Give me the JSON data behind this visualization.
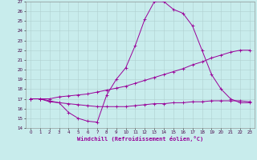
{
  "xlabel": "Windchill (Refroidissement éolien,°C)",
  "background_color": "#c8ecec",
  "grid_color": "#b0d0d0",
  "line_color": "#990099",
  "xlim": [
    -0.5,
    23.5
  ],
  "ylim": [
    14,
    27
  ],
  "xticks": [
    0,
    1,
    2,
    3,
    4,
    5,
    6,
    7,
    8,
    9,
    10,
    11,
    12,
    13,
    14,
    15,
    16,
    17,
    18,
    19,
    20,
    21,
    22,
    23
  ],
  "yticks": [
    14,
    15,
    16,
    17,
    18,
    19,
    20,
    21,
    22,
    23,
    24,
    25,
    26,
    27
  ],
  "line1_x": [
    0,
    1,
    2,
    3,
    4,
    5,
    6,
    7,
    8,
    9,
    10,
    11,
    12,
    13,
    14,
    15,
    16,
    17,
    18,
    19,
    20,
    21,
    22,
    23
  ],
  "line1_y": [
    17.0,
    17.0,
    16.7,
    16.6,
    15.6,
    15.0,
    14.7,
    14.6,
    17.4,
    19.0,
    20.2,
    22.5,
    25.2,
    27.0,
    27.0,
    26.2,
    25.8,
    24.5,
    22.0,
    19.5,
    18.0,
    17.0,
    16.6,
    16.6
  ],
  "line2_x": [
    0,
    1,
    2,
    3,
    4,
    5,
    6,
    7,
    8,
    9,
    10,
    11,
    12,
    13,
    14,
    15,
    16,
    17,
    18,
    19,
    20,
    21,
    22,
    23
  ],
  "line2_y": [
    17.0,
    17.0,
    17.0,
    17.2,
    17.3,
    17.4,
    17.5,
    17.7,
    17.9,
    18.1,
    18.3,
    18.6,
    18.9,
    19.2,
    19.5,
    19.8,
    20.1,
    20.5,
    20.8,
    21.2,
    21.5,
    21.8,
    22.0,
    22.0
  ],
  "line3_x": [
    0,
    1,
    2,
    3,
    4,
    5,
    6,
    7,
    8,
    9,
    10,
    11,
    12,
    13,
    14,
    15,
    16,
    17,
    18,
    19,
    20,
    21,
    22,
    23
  ],
  "line3_y": [
    17.0,
    17.0,
    16.8,
    16.6,
    16.5,
    16.4,
    16.3,
    16.2,
    16.2,
    16.2,
    16.2,
    16.3,
    16.4,
    16.5,
    16.5,
    16.6,
    16.6,
    16.7,
    16.7,
    16.8,
    16.8,
    16.8,
    16.8,
    16.7
  ],
  "tick_fontsize": 4.0,
  "xlabel_fontsize": 5.0,
  "marker_size": 2.5,
  "linewidth": 0.7
}
